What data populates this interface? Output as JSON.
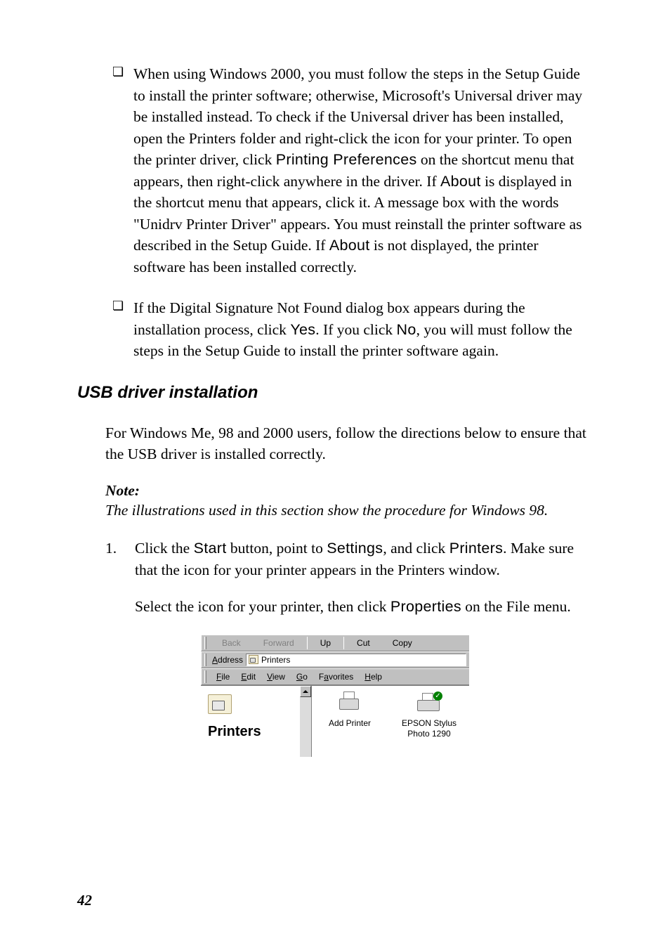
{
  "bullets": [
    {
      "pre": "When using Windows 2000, you must follow the steps in the Setup Guide to install the printer software; otherwise, Microsoft's Universal driver may be installed instead. To check if the Universal driver has been installed, open the Printers folder and right-click the icon for your printer. To open the printer driver, click ",
      "t1": "Printing Preferences",
      "mid1": " on the shortcut menu that appears, then right-click anywhere in the driver. If ",
      "t2": "About",
      "mid2": " is displayed in the shortcut menu that appears, click it. A message box with the words \"Unidrv Printer Driver\" appears. You must reinstall the printer software as described in the Setup Guide. If ",
      "t3": "About",
      "post": " is not displayed, the printer software has been installed correctly."
    },
    {
      "pre": "If the Digital Signature Not Found dialog box appears during the installation process, click ",
      "t1": "Yes",
      "mid1": ". If you click ",
      "t2": "No",
      "mid2": ", you will must follow the steps in the Setup Guide to install the printer software again.",
      "t3": "",
      "post": ""
    }
  ],
  "heading": "USB driver installation",
  "intro": "For Windows Me, 98 and 2000 users, follow the directions below to ensure that the USB driver is installed correctly.",
  "note_label": "Note:",
  "note_text": "The illustrations used in this section show the procedure for Windows 98.",
  "step1": {
    "num": "1.",
    "pre": "Click the ",
    "t1": "Start",
    "mid1": " button, point to ",
    "t2": "Settings",
    "mid2": ", and click ",
    "t3": "Printers",
    "post": ". Make sure that the icon for your printer appears in the Printers window."
  },
  "step1_cont": {
    "pre": "Select the icon for your printer, then click ",
    "t1": "Properties",
    "post": " on the File menu."
  },
  "screenshot": {
    "toolbar": {
      "back": "Back",
      "forward": "Forward",
      "up": "Up",
      "cut": "Cut",
      "copy": "Copy"
    },
    "address_label_u": "A",
    "address_label_rest": "ddress",
    "address_value": "Printers",
    "menu": {
      "file_u": "F",
      "file": "ile",
      "edit_u": "E",
      "edit": "dit",
      "view_u": "V",
      "view": "iew",
      "go_u": "G",
      "go": "o",
      "fav": "F",
      "fav_u": "a",
      "fav_rest": "vorites",
      "help_u": "H",
      "help": "elp"
    },
    "left_label": "Printers",
    "add_printer": "Add Printer",
    "epson1": "EPSON Stylus",
    "epson2": "Photo 1290"
  },
  "page_number": "42",
  "colors": {
    "text": "#000000",
    "bg": "#ffffff",
    "win_gray": "#c0c0c0",
    "disabled": "#808080"
  }
}
